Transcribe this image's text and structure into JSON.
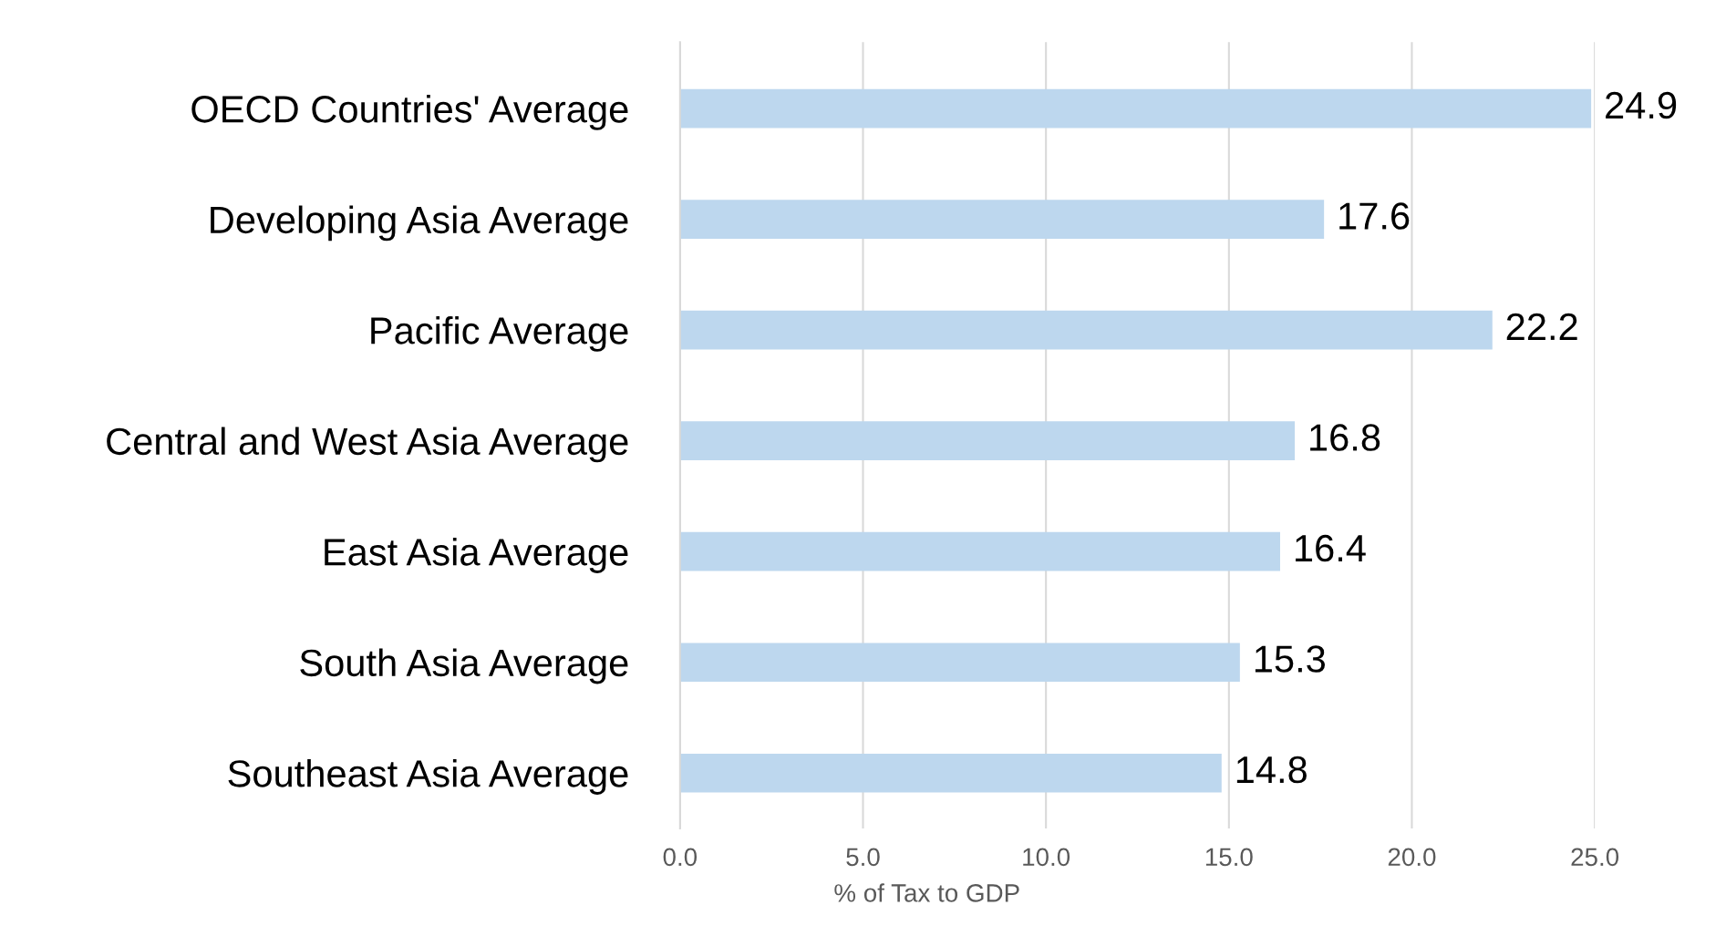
{
  "chart_data": {
    "type": "bar",
    "orientation": "horizontal",
    "xlabel": "% of Tax to GDP",
    "categories": [
      "OECD Countries' Average",
      "Developing Asia Average",
      "Pacific Average",
      "Central and West Asia Average",
      "East Asia Average",
      "South Asia Average",
      "Southeast Asia Average"
    ],
    "values": [
      24.9,
      17.6,
      22.2,
      16.8,
      16.4,
      15.3,
      14.8
    ],
    "color": "#bdd7ee",
    "xlim": [
      0,
      25
    ],
    "xticks": [
      {
        "value": 0,
        "label": "0.0"
      },
      {
        "value": 5,
        "label": "5.0"
      },
      {
        "value": 10,
        "label": "10.0"
      },
      {
        "value": 15,
        "label": "15.0"
      },
      {
        "value": 20,
        "label": "20.0"
      },
      {
        "value": 25,
        "label": "25.0"
      }
    ],
    "grid": "x",
    "data_labels": true,
    "legend": false
  }
}
